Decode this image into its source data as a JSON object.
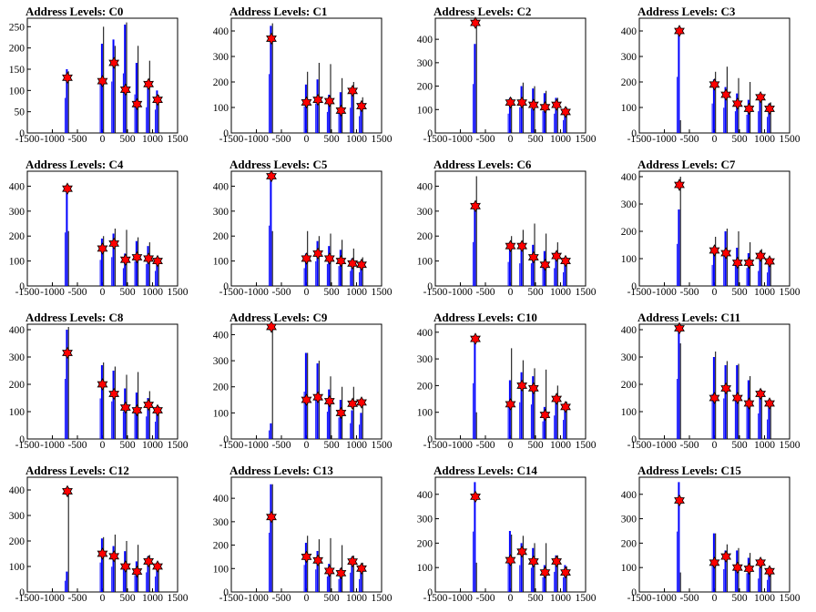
{
  "colors": {
    "blue": "#0000ff",
    "black": "#000000",
    "star": "#ff0000"
  },
  "xaxis": {
    "range": [
      -1500,
      1500
    ],
    "ticks": [
      -1500,
      -1000,
      -500,
      0,
      500,
      1000,
      1500
    ],
    "tick_labels": [
      "-1500",
      "-1000",
      "-500",
      "0",
      "500",
      "1000",
      "1500"
    ]
  },
  "chart_data": [
    {
      "type": "bar",
      "title": "Address Levels: C0",
      "ylim": [
        0,
        270
      ],
      "yticks": [
        0,
        50,
        100,
        150,
        200,
        250
      ],
      "peaks": [
        {
          "x": -700,
          "blue": 150,
          "black": 145,
          "star": 130
        },
        {
          "x": 0,
          "blue": 210,
          "black": 250,
          "star": 122
        },
        {
          "x": 230,
          "blue": 220,
          "black": 205,
          "star": 165
        },
        {
          "x": 460,
          "blue": 255,
          "black": 260,
          "star": 102
        },
        {
          "x": 690,
          "blue": 165,
          "black": 205,
          "star": 68
        },
        {
          "x": 920,
          "blue": 110,
          "black": 170,
          "star": 115
        },
        {
          "x": 1100,
          "blue": 100,
          "black": 90,
          "star": 78
        }
      ]
    },
    {
      "type": "bar",
      "title": "Address Levels: C1",
      "ylim": [
        0,
        450
      ],
      "yticks": [
        0,
        100,
        200,
        300,
        400
      ],
      "peaks": [
        {
          "x": -700,
          "blue": 420,
          "black": 430,
          "star": 370
        },
        {
          "x": 0,
          "blue": 190,
          "black": 240,
          "star": 120
        },
        {
          "x": 230,
          "blue": 210,
          "black": 275,
          "star": 130
        },
        {
          "x": 460,
          "blue": 150,
          "black": 270,
          "star": 125
        },
        {
          "x": 690,
          "blue": 160,
          "black": 215,
          "star": 88
        },
        {
          "x": 920,
          "blue": 180,
          "black": 200,
          "star": 165
        },
        {
          "x": 1100,
          "blue": 120,
          "black": 140,
          "star": 105
        }
      ]
    },
    {
      "type": "bar",
      "title": "Address Levels: C2",
      "ylim": [
        0,
        490
      ],
      "yticks": [
        0,
        100,
        200,
        300,
        400
      ],
      "peaks": [
        {
          "x": -700,
          "blue": 380,
          "black": 470,
          "star": 470
        },
        {
          "x": 0,
          "blue": 150,
          "black": 150,
          "star": 130
        },
        {
          "x": 230,
          "blue": 200,
          "black": 215,
          "star": 130
        },
        {
          "x": 460,
          "blue": 190,
          "black": 200,
          "star": 120
        },
        {
          "x": 690,
          "blue": 170,
          "black": 180,
          "star": 110
        },
        {
          "x": 920,
          "blue": 150,
          "black": 150,
          "star": 120
        },
        {
          "x": 1100,
          "blue": 100,
          "black": 110,
          "star": 90
        }
      ]
    },
    {
      "type": "bar",
      "title": "Address Levels: C3",
      "ylim": [
        0,
        450
      ],
      "yticks": [
        0,
        100,
        200,
        300,
        400
      ],
      "peaks": [
        {
          "x": -700,
          "blue": 400,
          "black": 50,
          "star": 400
        },
        {
          "x": 0,
          "blue": 210,
          "black": 240,
          "star": 190
        },
        {
          "x": 230,
          "blue": 180,
          "black": 260,
          "star": 150
        },
        {
          "x": 460,
          "blue": 155,
          "black": 215,
          "star": 115
        },
        {
          "x": 690,
          "blue": 130,
          "black": 200,
          "star": 95
        },
        {
          "x": 920,
          "blue": 155,
          "black": 150,
          "star": 140
        },
        {
          "x": 1100,
          "blue": 115,
          "black": 120,
          "star": 95
        }
      ]
    },
    {
      "type": "bar",
      "title": "Address Levels: C4",
      "ylim": [
        0,
        460
      ],
      "yticks": [
        0,
        100,
        200,
        300,
        400
      ],
      "peaks": [
        {
          "x": -700,
          "blue": 390,
          "black": 220,
          "star": 390
        },
        {
          "x": 0,
          "blue": 190,
          "black": 200,
          "star": 150
        },
        {
          "x": 230,
          "blue": 210,
          "black": 230,
          "star": 170
        },
        {
          "x": 460,
          "blue": 130,
          "black": 225,
          "star": 105
        },
        {
          "x": 690,
          "blue": 180,
          "black": 195,
          "star": 115
        },
        {
          "x": 920,
          "blue": 160,
          "black": 175,
          "star": 110
        },
        {
          "x": 1100,
          "blue": 110,
          "black": 110,
          "star": 100
        }
      ]
    },
    {
      "type": "bar",
      "title": "Address Levels: C5",
      "ylim": [
        0,
        460
      ],
      "yticks": [
        0,
        100,
        200,
        300,
        400
      ],
      "peaks": [
        {
          "x": -700,
          "blue": 440,
          "black": 220,
          "star": 440
        },
        {
          "x": 0,
          "blue": 130,
          "black": 220,
          "star": 110
        },
        {
          "x": 230,
          "blue": 180,
          "black": 200,
          "star": 130
        },
        {
          "x": 460,
          "blue": 160,
          "black": 210,
          "star": 110
        },
        {
          "x": 690,
          "blue": 145,
          "black": 185,
          "star": 100
        },
        {
          "x": 920,
          "blue": 110,
          "black": 150,
          "star": 90
        },
        {
          "x": 1100,
          "blue": 100,
          "black": 115,
          "star": 85
        }
      ]
    },
    {
      "type": "bar",
      "title": "Address Levels: C6",
      "ylim": [
        0,
        460
      ],
      "yticks": [
        0,
        100,
        200,
        300,
        400
      ],
      "peaks": [
        {
          "x": -700,
          "blue": 320,
          "black": 440,
          "star": 320
        },
        {
          "x": 0,
          "blue": 175,
          "black": 200,
          "star": 160
        },
        {
          "x": 230,
          "blue": 165,
          "black": 225,
          "star": 160
        },
        {
          "x": 460,
          "blue": 165,
          "black": 250,
          "star": 115
        },
        {
          "x": 690,
          "blue": 140,
          "black": 210,
          "star": 85
        },
        {
          "x": 920,
          "blue": 130,
          "black": 175,
          "star": 120
        },
        {
          "x": 1100,
          "blue": 100,
          "black": 110,
          "star": 100
        }
      ]
    },
    {
      "type": "bar",
      "title": "Address Levels: C7",
      "ylim": [
        0,
        420
      ],
      "yticks": [
        0,
        100,
        200,
        300,
        400
      ],
      "peaks": [
        {
          "x": -700,
          "blue": 280,
          "black": 400,
          "star": 370
        },
        {
          "x": 0,
          "blue": 140,
          "black": 180,
          "star": 130
        },
        {
          "x": 230,
          "blue": 200,
          "black": 210,
          "star": 120
        },
        {
          "x": 460,
          "blue": 140,
          "black": 200,
          "star": 85
        },
        {
          "x": 690,
          "blue": 120,
          "black": 160,
          "star": 85
        },
        {
          "x": 920,
          "blue": 100,
          "black": 135,
          "star": 110
        },
        {
          "x": 1100,
          "blue": 90,
          "black": 100,
          "star": 90
        }
      ]
    },
    {
      "type": "bar",
      "title": "Address Levels: C8",
      "ylim": [
        0,
        420
      ],
      "yticks": [
        0,
        100,
        200,
        300,
        400
      ],
      "peaks": [
        {
          "x": -700,
          "blue": 400,
          "black": 410,
          "star": 315
        },
        {
          "x": 0,
          "blue": 270,
          "black": 280,
          "star": 200
        },
        {
          "x": 230,
          "blue": 250,
          "black": 265,
          "star": 165
        },
        {
          "x": 460,
          "blue": 185,
          "black": 235,
          "star": 115
        },
        {
          "x": 690,
          "blue": 170,
          "black": 245,
          "star": 105
        },
        {
          "x": 920,
          "blue": 150,
          "black": 175,
          "star": 125
        },
        {
          "x": 1100,
          "blue": 115,
          "black": 120,
          "star": 105
        }
      ]
    },
    {
      "type": "bar",
      "title": "Address Levels: C9",
      "ylim": [
        0,
        440
      ],
      "yticks": [
        0,
        100,
        200,
        300,
        400
      ],
      "peaks": [
        {
          "x": -700,
          "blue": 60,
          "black": 430,
          "star": 430
        },
        {
          "x": 0,
          "blue": 330,
          "black": 330,
          "star": 150
        },
        {
          "x": 230,
          "blue": 290,
          "black": 300,
          "star": 160
        },
        {
          "x": 460,
          "blue": 190,
          "black": 240,
          "star": 145
        },
        {
          "x": 690,
          "blue": 150,
          "black": 200,
          "star": 100
        },
        {
          "x": 920,
          "blue": 110,
          "black": 200,
          "star": 135
        },
        {
          "x": 1100,
          "blue": 100,
          "black": 145,
          "star": 140
        }
      ]
    },
    {
      "type": "bar",
      "title": "Address Levels: C10",
      "ylim": [
        0,
        430
      ],
      "yticks": [
        0,
        100,
        200,
        300,
        400
      ],
      "peaks": [
        {
          "x": -700,
          "blue": 380,
          "black": 100,
          "star": 375
        },
        {
          "x": 0,
          "blue": 220,
          "black": 340,
          "star": 130
        },
        {
          "x": 230,
          "blue": 250,
          "black": 295,
          "star": 200
        },
        {
          "x": 460,
          "blue": 235,
          "black": 265,
          "star": 190
        },
        {
          "x": 690,
          "blue": 120,
          "black": 260,
          "star": 90
        },
        {
          "x": 920,
          "blue": 160,
          "black": 200,
          "star": 150
        },
        {
          "x": 1100,
          "blue": 130,
          "black": 140,
          "star": 120
        }
      ]
    },
    {
      "type": "bar",
      "title": "Address Levels: C11",
      "ylim": [
        0,
        420
      ],
      "yticks": [
        0,
        100,
        200,
        300,
        400
      ],
      "peaks": [
        {
          "x": -700,
          "blue": 400,
          "black": 350,
          "star": 405
        },
        {
          "x": 0,
          "blue": 300,
          "black": 320,
          "star": 150
        },
        {
          "x": 230,
          "blue": 270,
          "black": 285,
          "star": 185
        },
        {
          "x": 460,
          "blue": 270,
          "black": 275,
          "star": 150
        },
        {
          "x": 690,
          "blue": 215,
          "black": 230,
          "star": 130
        },
        {
          "x": 920,
          "blue": 170,
          "black": 180,
          "star": 165
        },
        {
          "x": 1100,
          "blue": 130,
          "black": 140,
          "star": 130
        }
      ]
    },
    {
      "type": "bar",
      "title": "Address Levels: C12",
      "ylim": [
        0,
        450
      ],
      "yticks": [
        0,
        100,
        200,
        300,
        400
      ],
      "peaks": [
        {
          "x": -700,
          "blue": 80,
          "black": 410,
          "star": 395
        },
        {
          "x": 0,
          "blue": 210,
          "black": 215,
          "star": 150
        },
        {
          "x": 230,
          "blue": 180,
          "black": 225,
          "star": 140
        },
        {
          "x": 460,
          "blue": 160,
          "black": 200,
          "star": 100
        },
        {
          "x": 690,
          "blue": 120,
          "black": 185,
          "star": 80
        },
        {
          "x": 920,
          "blue": 140,
          "black": 145,
          "star": 120
        },
        {
          "x": 1100,
          "blue": 110,
          "black": 115,
          "star": 100
        }
      ]
    },
    {
      "type": "bar",
      "title": "Address Levels: C13",
      "ylim": [
        0,
        490
      ],
      "yticks": [
        0,
        100,
        200,
        300,
        400
      ],
      "peaks": [
        {
          "x": -700,
          "blue": 460,
          "black": 460,
          "star": 320
        },
        {
          "x": 0,
          "blue": 210,
          "black": 240,
          "star": 150
        },
        {
          "x": 230,
          "blue": 175,
          "black": 225,
          "star": 135
        },
        {
          "x": 460,
          "blue": 120,
          "black": 230,
          "star": 90
        },
        {
          "x": 690,
          "blue": 100,
          "black": 200,
          "star": 80
        },
        {
          "x": 920,
          "blue": 150,
          "black": 155,
          "star": 130
        },
        {
          "x": 1100,
          "blue": 100,
          "black": 125,
          "star": 100
        }
      ]
    },
    {
      "type": "bar",
      "title": "Address Levels: C14",
      "ylim": [
        0,
        470
      ],
      "yticks": [
        0,
        100,
        200,
        300,
        400
      ],
      "peaks": [
        {
          "x": -700,
          "blue": 450,
          "black": 120,
          "star": 390
        },
        {
          "x": 0,
          "blue": 250,
          "black": 235,
          "star": 130
        },
        {
          "x": 230,
          "blue": 200,
          "black": 230,
          "star": 165
        },
        {
          "x": 460,
          "blue": 180,
          "black": 200,
          "star": 125
        },
        {
          "x": 690,
          "blue": 110,
          "black": 200,
          "star": 80
        },
        {
          "x": 920,
          "blue": 150,
          "black": 150,
          "star": 125
        },
        {
          "x": 1100,
          "blue": 110,
          "black": 105,
          "star": 80
        }
      ]
    },
    {
      "type": "bar",
      "title": "Address Levels: C15",
      "ylim": [
        0,
        470
      ],
      "yticks": [
        0,
        100,
        200,
        300,
        400
      ],
      "peaks": [
        {
          "x": -700,
          "blue": 450,
          "black": 80,
          "star": 375
        },
        {
          "x": 0,
          "blue": 240,
          "black": 240,
          "star": 120
        },
        {
          "x": 230,
          "blue": 170,
          "black": 195,
          "star": 145
        },
        {
          "x": 460,
          "blue": 170,
          "black": 180,
          "star": 100
        },
        {
          "x": 690,
          "blue": 140,
          "black": 160,
          "star": 95
        },
        {
          "x": 920,
          "blue": 100,
          "black": 130,
          "star": 120
        },
        {
          "x": 1100,
          "blue": 90,
          "black": 100,
          "star": 85
        }
      ]
    }
  ]
}
